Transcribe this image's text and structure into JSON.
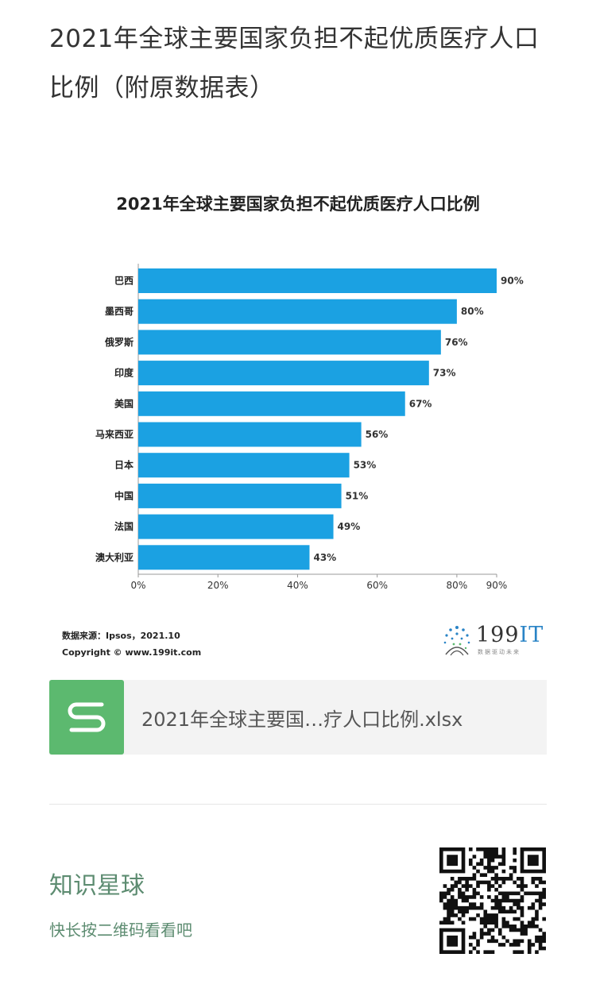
{
  "article": {
    "title": "2021年全球主要国家负担不起优质医疗人口比例（附原数据表）"
  },
  "chart_data": {
    "type": "bar",
    "orientation": "horizontal",
    "title": "2021年全球主要国家负担不起优质医疗人口比例",
    "categories": [
      "巴西",
      "墨西哥",
      "俄罗斯",
      "印度",
      "美国",
      "马来西亚",
      "日本",
      "中国",
      "法国",
      "澳大利亚"
    ],
    "values": [
      90,
      80,
      76,
      73,
      67,
      56,
      53,
      51,
      49,
      43
    ],
    "value_labels": [
      "90%",
      "80%",
      "76%",
      "73%",
      "67%",
      "56%",
      "53%",
      "51%",
      "49%",
      "43%"
    ],
    "xlim": [
      0,
      90
    ],
    "x_ticks": [
      0,
      20,
      40,
      60,
      80,
      90
    ],
    "x_tick_labels": [
      "0%",
      "20%",
      "40%",
      "60%",
      "80%",
      "90%"
    ],
    "xlabel": "",
    "ylabel": "",
    "grid": false,
    "bar_color": "#1ba1e2"
  },
  "source": {
    "label": "数据来源：Ipsos，2021.10",
    "copyright": "Copyright © www.199it.com"
  },
  "logo": {
    "main": "199",
    "accent": "IT",
    "tagline": "数据驱动未来"
  },
  "attachment": {
    "file_name": "2021年全球主要国…疗人口比例.xlsx",
    "icon": "spreadsheet-icon",
    "icon_color": "#5cb96f"
  },
  "knowledge_planet": {
    "title": "知识星球",
    "subtitle": "快长按二维码看看吧",
    "color": "#5d8c71",
    "qr_icon": "qr-code-icon"
  }
}
